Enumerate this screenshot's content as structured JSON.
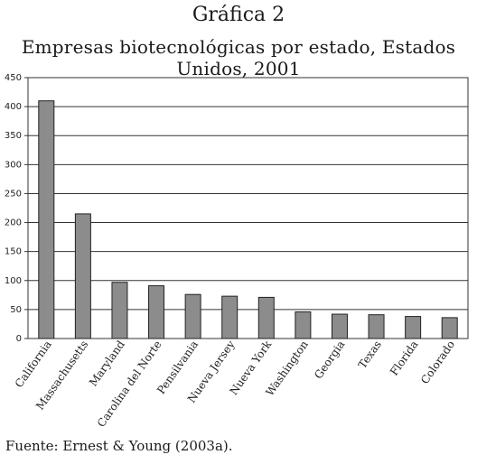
{
  "figure_label": "Gráfica 2",
  "source_note": "Fuente: Ernest & Young (2003a).",
  "chart_data": {
    "type": "bar",
    "title": "Empresas biotecnológicas por estado, Estados Unidos, 2001",
    "categories": [
      "California",
      "Massachusetts",
      "Maryland",
      "Carolina del Norte",
      "Pensilvania",
      "Nueva Jersey",
      "Nueva York",
      "Washington",
      "Georgia",
      "Texas",
      "Florida",
      "Colorado"
    ],
    "values": [
      410,
      215,
      97,
      91,
      76,
      73,
      71,
      46,
      42,
      41,
      38,
      36
    ],
    "ylim": [
      0,
      450
    ],
    "yticks": [
      0,
      50,
      100,
      150,
      200,
      250,
      300,
      350,
      400,
      450
    ],
    "xlabel": "",
    "ylabel": "",
    "grid": true,
    "bar_color": "#8c8c8c"
  }
}
